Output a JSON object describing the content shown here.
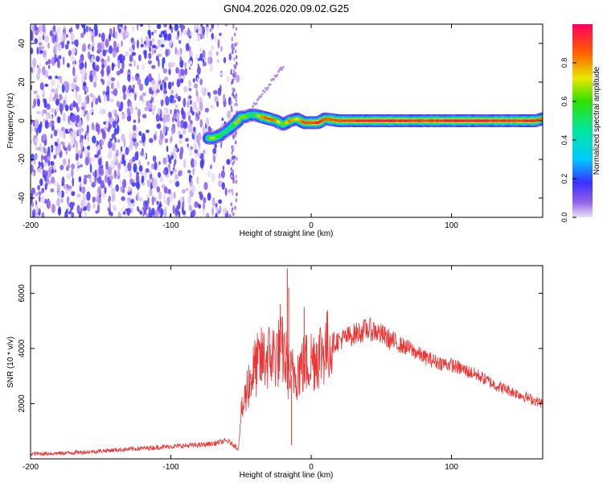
{
  "figure_title": "GN04.2026.020.09.02.G25",
  "chart_data": [
    {
      "type": "heatmap",
      "xlabel": "Height of straight line (km)",
      "ylabel": "Frequency (Hz)",
      "xlim": [
        -200,
        165
      ],
      "ylim": [
        -50,
        50
      ],
      "x_ticks": [
        -200,
        -100,
        0,
        100
      ],
      "y_ticks": [
        -40,
        -20,
        0,
        20,
        40
      ],
      "colorbar": {
        "label": "Normalized spectral amplitude",
        "range": [
          0,
          1
        ],
        "ticks": [
          "0.0",
          "0.2",
          "0.4",
          "0.6",
          "0.8"
        ]
      },
      "noise_region_x": [
        -200,
        -55
      ],
      "ridge": {
        "x": [
          -73,
          -70,
          -66,
          -62,
          -58,
          -55,
          -52,
          -50,
          -47,
          -44,
          -40,
          -35,
          -30,
          -25,
          -20,
          -15,
          -10,
          -5,
          0,
          5,
          10,
          20,
          40,
          60,
          80,
          100,
          120,
          140,
          160,
          165
        ],
        "freq": [
          -9,
          -9,
          -8,
          -6,
          -4,
          -2,
          0,
          2,
          2,
          3,
          3,
          2,
          1,
          0,
          -2,
          0,
          1,
          -1,
          -1,
          -1,
          1,
          0,
          0,
          0,
          0,
          0,
          0,
          0,
          0,
          1
        ],
        "amplitude": [
          0.6,
          0.7,
          0.6,
          0.5,
          0.5,
          0.6,
          0.8,
          0.6,
          0.7,
          0.5,
          0.6,
          0.8,
          0.9,
          0.8,
          0.6,
          0.85,
          0.7,
          0.9,
          0.85,
          0.95,
          0.85,
          0.9,
          0.95,
          0.95,
          0.9,
          0.95,
          0.95,
          0.9,
          0.95,
          0.8
        ]
      },
      "faint_branch": {
        "x": [
          -44,
          -20
        ],
        "freq": [
          5,
          28
        ]
      }
    },
    {
      "type": "line",
      "xlabel": "Height of straight line (km)",
      "ylabel": "SNR (10 * v/v)",
      "xlim": [
        -200,
        165
      ],
      "ylim": [
        0,
        7000
      ],
      "x_ticks": [
        -200,
        -100,
        0,
        100
      ],
      "y_ticks": [
        2000,
        4000,
        6000
      ],
      "color": "#ee3333",
      "series": [
        {
          "x": [
            -200,
            -180,
            -160,
            -140,
            -120,
            -100,
            -80,
            -70,
            -60,
            -55,
            -52,
            -50,
            -45,
            -40,
            -35,
            -30,
            -25,
            -20,
            -15,
            -10,
            -5,
            0,
            5,
            10,
            15,
            20,
            25,
            30,
            40,
            45,
            50,
            60,
            70,
            80,
            90,
            100,
            110,
            120,
            130,
            140,
            150,
            160,
            165
          ],
          "values": [
            180,
            200,
            250,
            320,
            380,
            450,
            500,
            550,
            650,
            500,
            350,
            1500,
            2700,
            3300,
            3600,
            3700,
            3800,
            3900,
            3000,
            3200,
            3400,
            3600,
            3800,
            4000,
            4200,
            4300,
            4400,
            4500,
            4700,
            4650,
            4500,
            4200,
            4000,
            3700,
            3500,
            3400,
            3200,
            3000,
            2700,
            2500,
            2300,
            2100,
            2000
          ]
        }
      ],
      "spikes": [
        {
          "x": -17,
          "value": 6900
        },
        {
          "x": -16,
          "value": 6200
        },
        {
          "x": -14,
          "value": 500
        },
        {
          "x": -22,
          "value": 5600
        },
        {
          "x": -5,
          "value": 5500
        }
      ]
    }
  ]
}
